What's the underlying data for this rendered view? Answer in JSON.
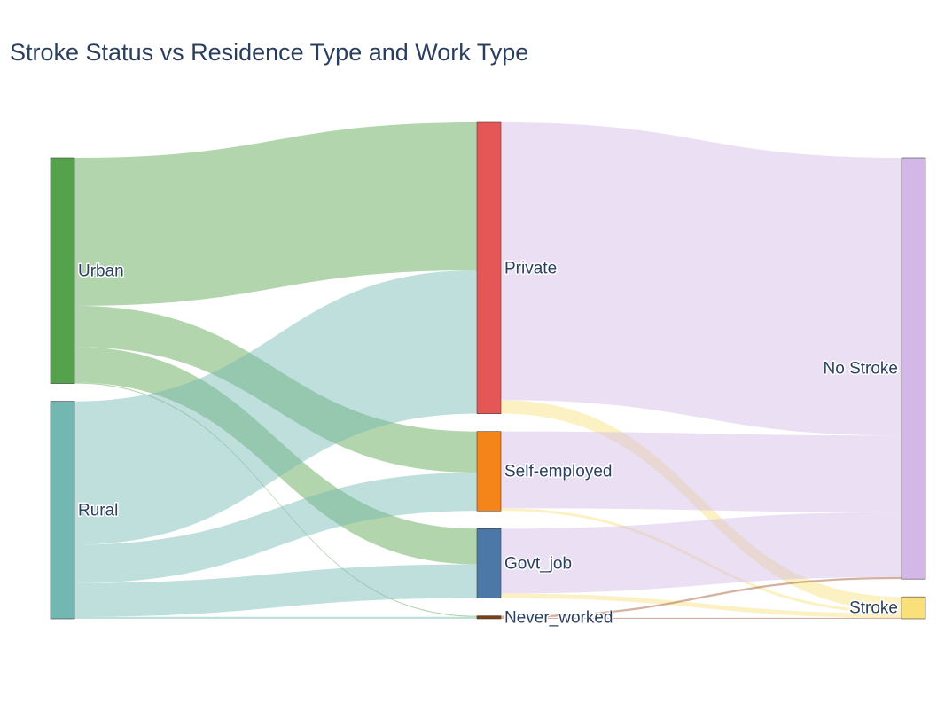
{
  "chart_data": {
    "type": "sankey",
    "title": "Stroke Status vs Residence Type and Work Type",
    "nodes": [
      {
        "id": "urban",
        "label": "Urban",
        "column": 0,
        "color": "#54a24b"
      },
      {
        "id": "rural",
        "label": "Rural",
        "column": 0,
        "color": "#72b7b2"
      },
      {
        "id": "private",
        "label": "Private",
        "column": 1,
        "color": "#e45756"
      },
      {
        "id": "self_employed",
        "label": "Self-employed",
        "column": 1,
        "color": "#f58518"
      },
      {
        "id": "govt_job",
        "label": "Govt_job",
        "column": 1,
        "color": "#4c78a8"
      },
      {
        "id": "never_worked",
        "label": "Never_worked",
        "column": 1,
        "color": "#7b3f16"
      },
      {
        "id": "no_stroke",
        "label": "No Stroke",
        "column": 2,
        "color": "#d3b7e6"
      },
      {
        "id": "stroke",
        "label": "Stroke",
        "column": 2,
        "color": "#f9e07a"
      }
    ],
    "links": [
      {
        "source": "urban",
        "target": "private",
        "value": 1620,
        "color": "#54a24b"
      },
      {
        "source": "urban",
        "target": "self_employed",
        "value": 450,
        "color": "#54a24b"
      },
      {
        "source": "urban",
        "target": "govt_job",
        "value": 390,
        "color": "#54a24b"
      },
      {
        "source": "urban",
        "target": "never_worked",
        "value": 11,
        "color": "#54a24b"
      },
      {
        "source": "rural",
        "target": "private",
        "value": 1570,
        "color": "#72b7b2"
      },
      {
        "source": "rural",
        "target": "self_employed",
        "value": 420,
        "color": "#72b7b2"
      },
      {
        "source": "rural",
        "target": "govt_job",
        "value": 370,
        "color": "#72b7b2"
      },
      {
        "source": "rural",
        "target": "never_worked",
        "value": 22,
        "color": "#72b7b2"
      },
      {
        "source": "private",
        "target": "no_stroke",
        "value": 3040,
        "color": "#d3b7e6"
      },
      {
        "source": "private",
        "target": "stroke",
        "value": 150,
        "color": "#f9e07a"
      },
      {
        "source": "self_employed",
        "target": "no_stroke",
        "value": 840,
        "color": "#d3b7e6"
      },
      {
        "source": "self_employed",
        "target": "stroke",
        "value": 30,
        "color": "#f9e07a"
      },
      {
        "source": "govt_job",
        "target": "no_stroke",
        "value": 710,
        "color": "#d3b7e6"
      },
      {
        "source": "govt_job",
        "target": "stroke",
        "value": 50,
        "color": "#f9e07a"
      },
      {
        "source": "never_worked",
        "target": "no_stroke",
        "value": 22,
        "color": "#a0522d"
      },
      {
        "source": "never_worked",
        "target": "stroke",
        "value": 11,
        "color": "#a0522d"
      }
    ]
  }
}
